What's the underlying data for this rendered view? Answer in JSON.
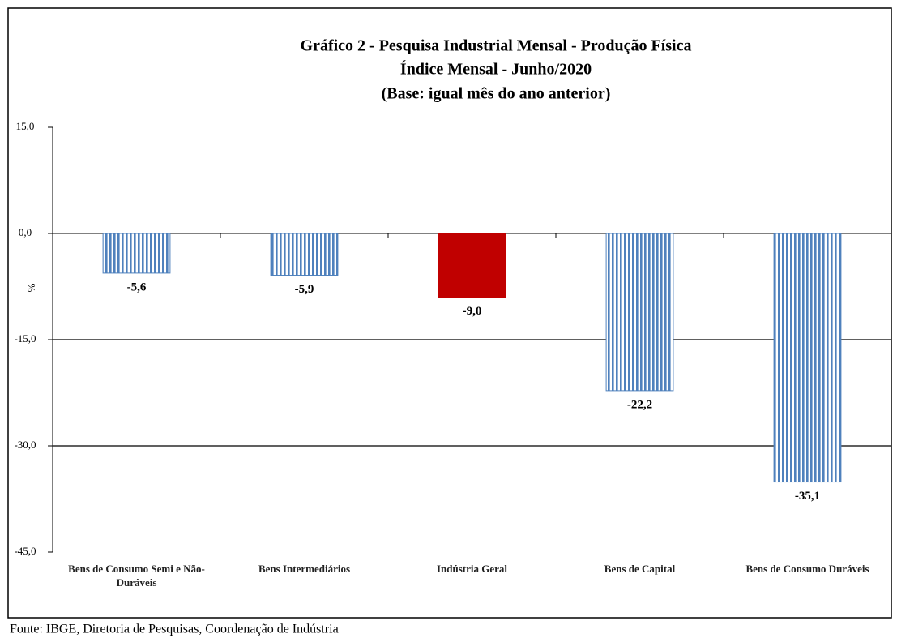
{
  "chart_data": {
    "type": "bar",
    "title": "Gráfico 2 - Pesquisa Industrial Mensal - Produção Física",
    "subtitle": [
      "Índice Mensal - Junho/2020",
      "(Base: igual mês do ano anterior)"
    ],
    "y_label": "%",
    "categories": [
      "Bens de Consumo Semi e Não-Duráveis",
      "Bens Intermediários",
      "Indústria Geral",
      "Bens de Capital",
      "Bens de Consumo Duráveis"
    ],
    "values": [
      -5.6,
      -5.9,
      -9.0,
      -22.2,
      -35.1
    ],
    "value_labels": [
      "-5,6",
      "-5,9",
      "-9,0",
      "-22,2",
      "-35,1"
    ],
    "colors": [
      "#4f81bd",
      "#4f81bd",
      "#c00000",
      "#4f81bd",
      "#4f81bd"
    ],
    "patterns": [
      "stripes",
      "stripes",
      "solid",
      "stripes",
      "stripes"
    ],
    "ylim": [
      -45,
      15
    ],
    "yticks": [
      {
        "value": 15,
        "label": "15,0"
      },
      {
        "value": 0,
        "label": "0,0"
      },
      {
        "value": -15,
        "label": "-15,0"
      },
      {
        "value": -30,
        "label": "-30,0"
      },
      {
        "value": -45,
        "label": "-45,0"
      }
    ],
    "grid": true,
    "source": "Fonte: IBGE, Diretoria de Pesquisas, Coordenação de Indústria"
  }
}
